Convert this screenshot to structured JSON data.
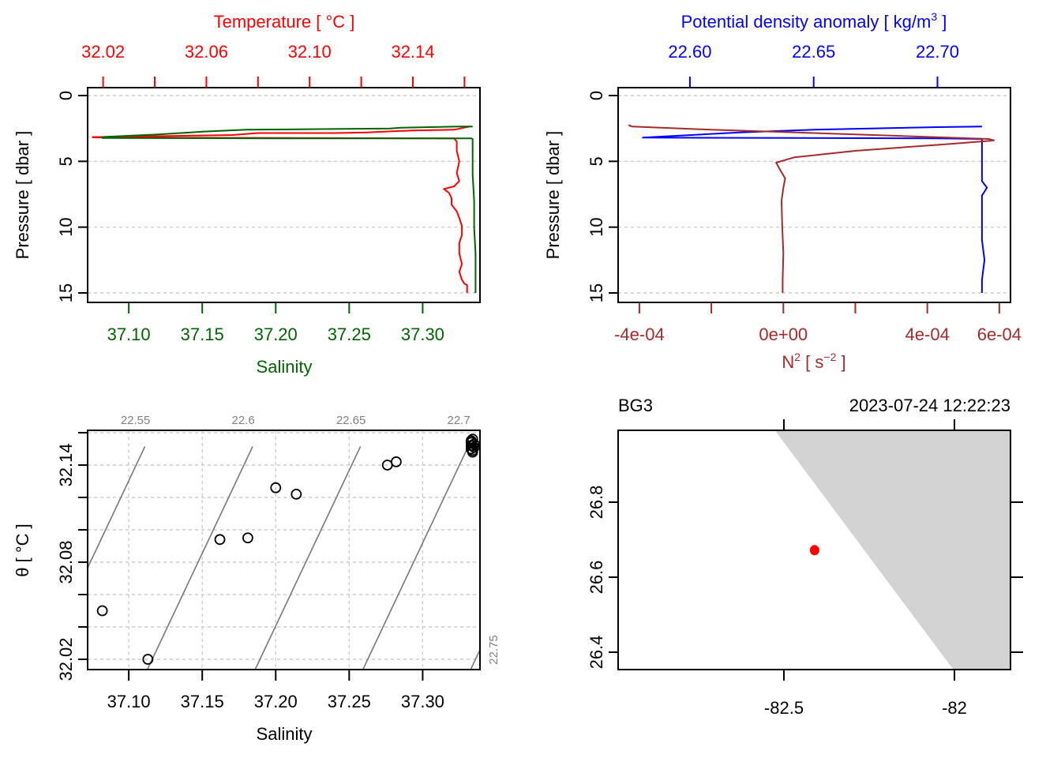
{
  "chart_data": [
    {
      "id": "profile_ts",
      "type": "line",
      "ylabel": "Pressure [ dbar ]",
      "ylim": [
        0,
        16
      ],
      "y_reversed": true,
      "yticks": [
        "0",
        "5",
        "10",
        "15"
      ],
      "grid": true,
      "top_axis": {
        "label": "Temperature [ °C ]",
        "color": "#ff0000",
        "range": [
          32.014,
          32.166
        ],
        "ticks": [
          "32.02",
          "32.06",
          "32.10",
          "32.14"
        ],
        "minor_ticks": [
          32.04,
          32.08,
          32.12,
          32.16
        ]
      },
      "bottom_axis": {
        "label": "Salinity",
        "color": "#006400",
        "range": [
          37.072,
          37.339
        ],
        "ticks": [
          "37.10",
          "37.15",
          "37.20",
          "37.25",
          "37.30"
        ]
      },
      "series": [
        {
          "name": "Temperature",
          "axis": "top",
          "color": "#ff0000",
          "points": [
            [
              32.161,
              2.4
            ],
            [
              32.162,
              2.35
            ],
            [
              32.156,
              2.6
            ],
            [
              32.14,
              2.65
            ],
            [
              32.122,
              2.8
            ],
            [
              32.11,
              2.85
            ],
            [
              32.08,
              2.85
            ],
            [
              32.07,
              3.0
            ],
            [
              32.02,
              3.15
            ],
            [
              32.016,
              3.15
            ],
            [
              32.016,
              3.18
            ],
            [
              32.03,
              3.2
            ],
            [
              32.15,
              3.25
            ],
            [
              32.156,
              3.25
            ],
            [
              32.157,
              3.5
            ],
            [
              32.157,
              4.2
            ],
            [
              32.158,
              5.0
            ],
            [
              32.157,
              5.9
            ],
            [
              32.158,
              6.5
            ],
            [
              32.156,
              6.9
            ],
            [
              32.152,
              7.1
            ],
            [
              32.154,
              7.4
            ],
            [
              32.155,
              7.8
            ],
            [
              32.155,
              8.3
            ],
            [
              32.157,
              8.8
            ],
            [
              32.158,
              9.3
            ],
            [
              32.159,
              9.9
            ],
            [
              32.159,
              10.6
            ],
            [
              32.158,
              11.2
            ],
            [
              32.158,
              12.0
            ],
            [
              32.159,
              12.8
            ],
            [
              32.158,
              13.4
            ],
            [
              32.159,
              14.0
            ],
            [
              32.16,
              14.3
            ],
            [
              32.161,
              14.4
            ],
            [
              32.161,
              15.0
            ]
          ]
        },
        {
          "name": "Salinity",
          "axis": "bottom",
          "color": "#006400",
          "points": [
            [
              37.334,
              2.35
            ],
            [
              37.325,
              2.35
            ],
            [
              37.285,
              2.45
            ],
            [
              37.278,
              2.5
            ],
            [
              37.23,
              2.55
            ],
            [
              37.18,
              2.6
            ],
            [
              37.15,
              2.75
            ],
            [
              37.12,
              2.95
            ],
            [
              37.082,
              3.15
            ],
            [
              37.082,
              3.22
            ],
            [
              37.2,
              3.25
            ],
            [
              37.333,
              3.25
            ],
            [
              37.334,
              3.3
            ],
            [
              37.334,
              4.5
            ],
            [
              37.334,
              6.0
            ],
            [
              37.335,
              8.0
            ],
            [
              37.335,
              10.0
            ],
            [
              37.336,
              12.0
            ],
            [
              37.336,
              14.0
            ],
            [
              37.336,
              15.0
            ]
          ]
        }
      ]
    },
    {
      "id": "profile_density_n2",
      "type": "line",
      "ylabel": "Pressure [ dbar ]",
      "ylim": [
        0,
        16
      ],
      "y_reversed": true,
      "yticks": [
        "0",
        "5",
        "10",
        "15"
      ],
      "grid": true,
      "top_axis": {
        "label": "Potential density anomaly [ kg/m³ ]",
        "color": "#0000ff",
        "range": [
          22.571,
          22.7295
        ],
        "ticks": [
          "22.60",
          "22.65",
          "22.70"
        ]
      },
      "bottom_axis": {
        "label": "N² [ s⁻² ]",
        "color": "#a52a2a",
        "range": [
          -0.000459,
          0.000631
        ],
        "ticks": [
          "-4e-04",
          "0e+00",
          "4e-04",
          "6e-04"
        ],
        "minor_ticks": [
          -0.0002,
          0.0002
        ]
      },
      "series": [
        {
          "name": "Potential density anomaly",
          "axis": "top",
          "color": "#0000ff",
          "points": [
            [
              22.718,
              2.35
            ],
            [
              22.7,
              2.4
            ],
            [
              22.688,
              2.45
            ],
            [
              22.65,
              2.6
            ],
            [
              22.62,
              2.8
            ],
            [
              22.581,
              3.2
            ],
            [
              22.7,
              3.25
            ],
            [
              22.718,
              3.3
            ],
            [
              22.718,
              4.5
            ],
            [
              22.718,
              6.5
            ],
            [
              22.72,
              7.0
            ],
            [
              22.718,
              7.6
            ],
            [
              22.718,
              9.0
            ],
            [
              22.718,
              11.0
            ],
            [
              22.719,
              12.5
            ],
            [
              22.718,
              14.0
            ],
            [
              22.718,
              15.0
            ]
          ]
        },
        {
          "name": "N2",
          "axis": "bottom",
          "color": "#a52a2a",
          "points": [
            [
              -0.00043,
              2.25
            ],
            [
              -0.00042,
              2.35
            ],
            [
              -0.0002,
              2.6
            ],
            [
              0.0002,
              2.95
            ],
            [
              0.00057,
              3.3
            ],
            [
              0.000585,
              3.4
            ],
            [
              0.00057,
              3.45
            ],
            [
              0.00045,
              3.7
            ],
            [
              0.0002,
              4.2
            ],
            [
              3e-05,
              4.7
            ],
            [
              -2e-05,
              5.1
            ],
            [
              -1e-05,
              5.6
            ],
            [
              5e-06,
              6.3
            ],
            [
              0.0,
              7.0
            ],
            [
              -5e-06,
              8.0
            ],
            [
              -3e-06,
              10.0
            ],
            [
              0.0,
              12.0
            ],
            [
              -2e-06,
              14.0
            ],
            [
              -2e-06,
              15.0
            ]
          ]
        }
      ]
    },
    {
      "id": "ts_diagram",
      "type": "scatter",
      "xlabel": "Salinity",
      "ylabel": "θ [ °C ]",
      "xlim": [
        37.072,
        37.339
      ],
      "ylim": [
        32.0,
        32.1515
      ],
      "xticks": [
        "37.10",
        "37.15",
        "37.20",
        "37.25",
        "37.30"
      ],
      "yticks": [
        "32.02",
        "32.08",
        "32.14"
      ],
      "y_minor_ticks": [
        32.04,
        32.06,
        32.1,
        32.12,
        32.16
      ],
      "grid": true,
      "isopycnals": [
        {
          "label": "22.55",
          "sigma": 22.55
        },
        {
          "label": "22.6",
          "sigma": 22.6
        },
        {
          "label": "22.65",
          "sigma": 22.65
        },
        {
          "label": "22.7",
          "sigma": 22.7
        },
        {
          "label": "22.75",
          "sigma": 22.75
        }
      ],
      "points": [
        [
          37.082,
          32.05
        ],
        [
          37.113,
          32.02
        ],
        [
          37.162,
          32.094
        ],
        [
          37.181,
          32.095
        ],
        [
          37.2,
          32.126
        ],
        [
          37.214,
          32.122
        ],
        [
          37.276,
          32.14
        ],
        [
          37.282,
          32.142
        ],
        [
          37.333,
          32.154
        ],
        [
          37.334,
          32.152
        ],
        [
          37.333,
          32.15
        ],
        [
          37.334,
          32.156
        ],
        [
          37.335,
          32.153
        ],
        [
          37.334,
          32.149
        ],
        [
          37.333,
          32.155
        ],
        [
          37.335,
          32.151
        ],
        [
          37.334,
          32.148
        ],
        [
          37.333,
          32.152
        ]
      ],
      "marker": "open-circle"
    },
    {
      "id": "station_map",
      "type": "map",
      "title_left": "BG3",
      "title_right": "2023-07-24 12:22:23",
      "xlim": [
        -82.97,
        -81.82
      ],
      "ylim": [
        26.355,
        26.995
      ],
      "xticks": [
        "-82.5",
        "-82"
      ],
      "yticks": [
        "26.4",
        "26.6",
        "26.8"
      ],
      "station": {
        "lon": -82.41,
        "lat": 26.672,
        "color": "#ff0000"
      },
      "land_color": "#d3d3d3",
      "coastline": [
        [
          -82.53,
          26.995
        ],
        [
          -82.0,
          26.355
        ]
      ]
    }
  ]
}
